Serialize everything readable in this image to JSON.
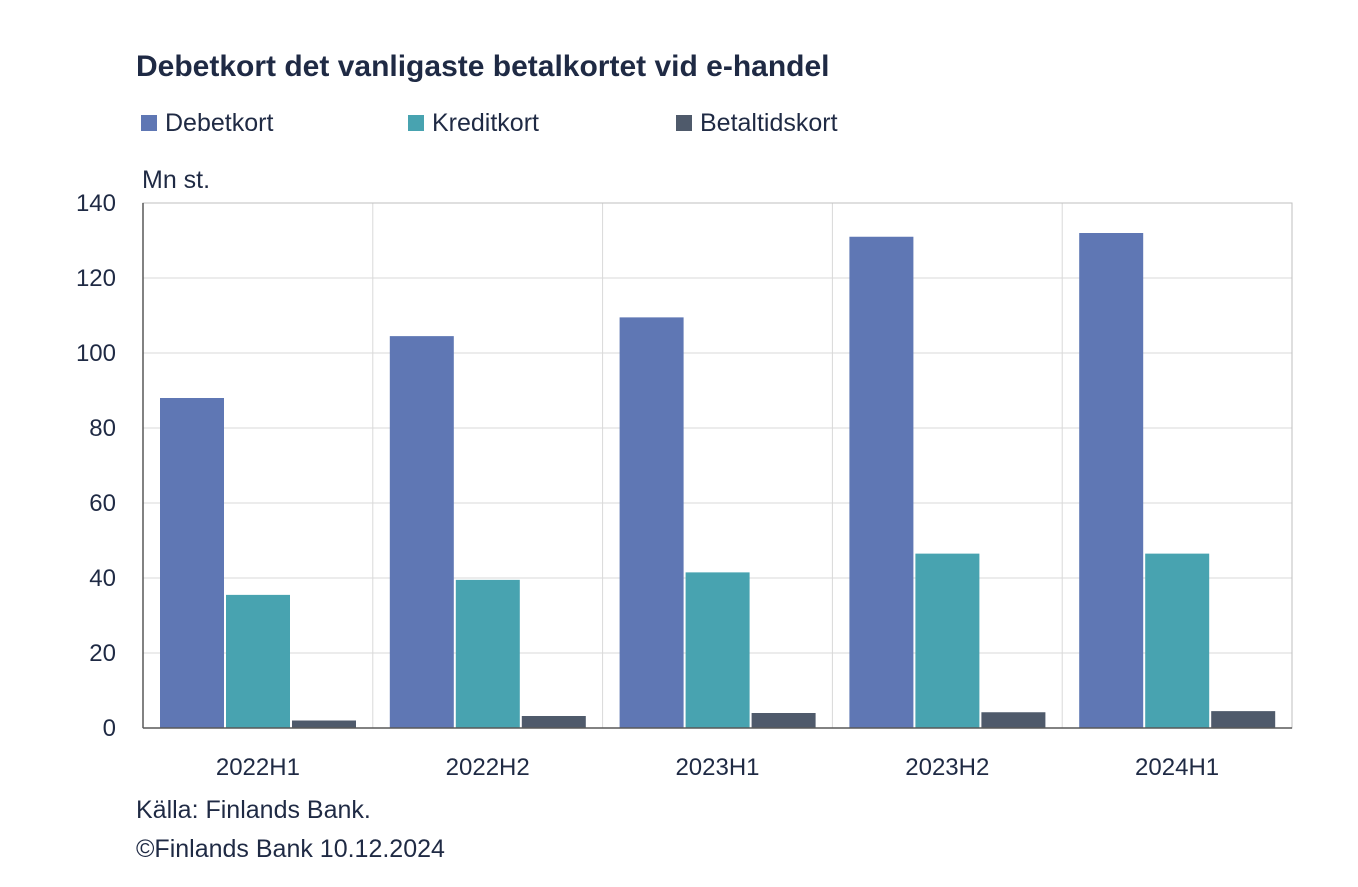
{
  "chart_data": {
    "type": "bar",
    "title": "Debetkort det vanligaste betalkortet vid e-handel",
    "ylabel": "Mn st.",
    "xlabel": "",
    "categories": [
      "2022H1",
      "2022H2",
      "2023H1",
      "2023H2",
      "2024H1"
    ],
    "series": [
      {
        "name": "Debetkort",
        "color": "#5f77b4",
        "values": [
          88,
          104.5,
          109.5,
          131,
          132
        ]
      },
      {
        "name": "Kreditkort",
        "color": "#48a3b0",
        "values": [
          35.5,
          39.5,
          41.5,
          46.5,
          46.5
        ]
      },
      {
        "name": "Betaltidskort",
        "color": "#4f5a6b",
        "values": [
          2,
          3.2,
          4,
          4.2,
          4.5
        ]
      }
    ],
    "ylim": [
      0,
      140
    ],
    "yticks": [
      0,
      20,
      40,
      60,
      80,
      100,
      120,
      140
    ],
    "grid": true,
    "legend_position": "top-left"
  },
  "footer": {
    "source": "Källa: Finlands Bank.",
    "copyright": "©Finlands Bank 10.12.2024"
  }
}
